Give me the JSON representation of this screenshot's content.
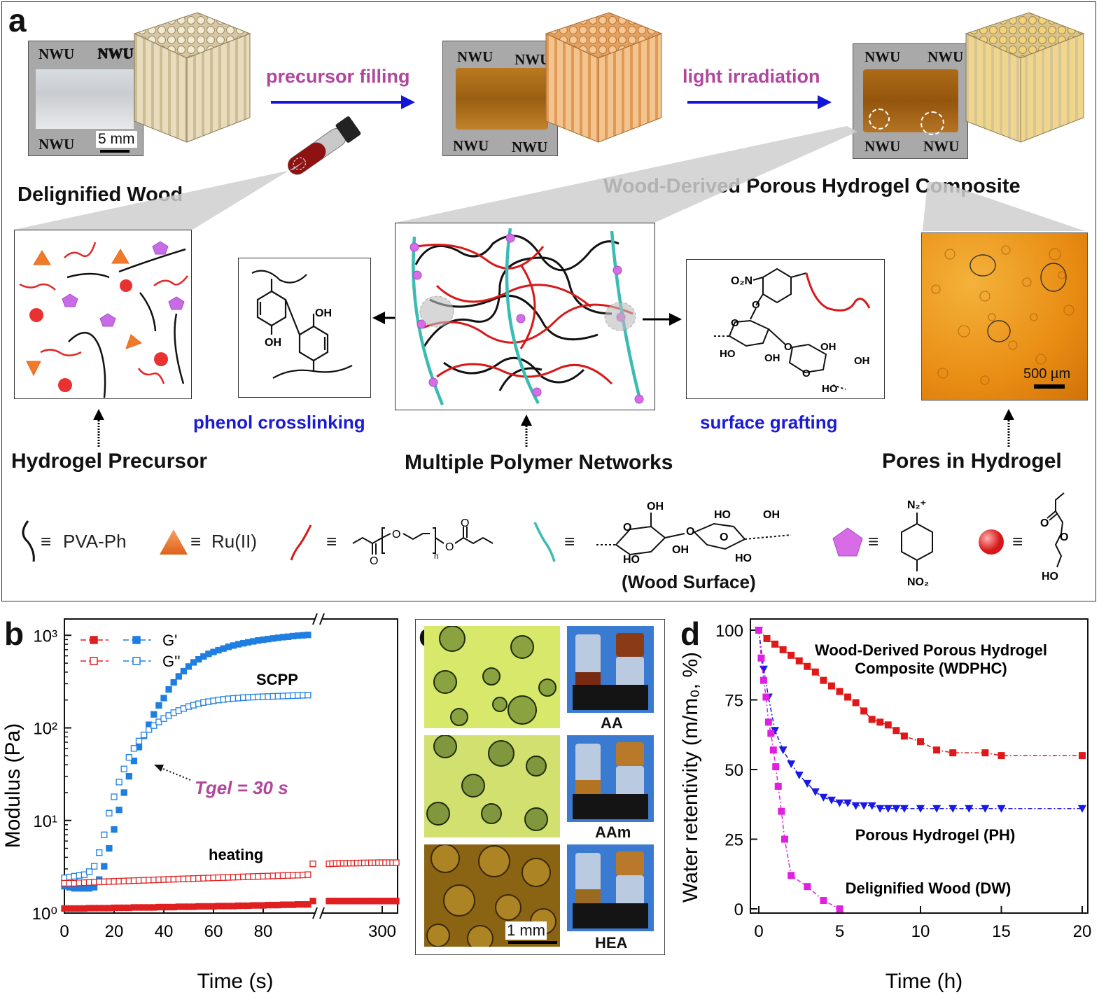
{
  "panel_a": {
    "letter": "a",
    "photo_labels": [
      "NWU",
      "NWU",
      "NWU",
      "NWU"
    ],
    "photo2_labels": [
      "NWU",
      "NWU",
      "NWU",
      "NWU"
    ],
    "photo3_labels": [
      "NWU",
      "NWU",
      "NWU",
      "NWU"
    ],
    "scale_bar": "5 mm",
    "arrow1": "precursor filling",
    "arrow2": "light irradiation",
    "title_left": "Delignified Wood",
    "title_right": "Wood-Derived Porous Hydrogel Composite",
    "phenol_label": "phenol crosslinking",
    "grafting_label": "surface grafting",
    "caption_precursor": "Hydrogel Precursor",
    "caption_networks": "Multiple Polymer Networks",
    "caption_pores": "Pores in Hydrogel",
    "pores_scale": "500 µm",
    "phenol_oh1": "OH",
    "phenol_oh2": "OH",
    "graft_no2": "O₂N",
    "graft_labels": [
      "O",
      "O",
      "HO",
      "OH",
      "OH",
      "OH",
      "O",
      "HO",
      "O"
    ],
    "legend": {
      "pva": "PVA-Ph",
      "ru": "Ru(II)",
      "eq": "≡",
      "peg_n": "n",
      "wood_surface": "(Wood Surface)",
      "wood_labels": [
        "OH",
        "HO",
        "OH",
        "O",
        "O",
        "O",
        "OH",
        "HO",
        "HO"
      ],
      "diazo_top": "N₂⁺",
      "diazo_bottom": "NO₂",
      "hea_labels": [
        "O",
        "O",
        "HO"
      ],
      "peg_o": [
        "O",
        "O",
        "O",
        "O"
      ]
    }
  },
  "panel_b": {
    "letter": "b",
    "chart_data": {
      "type": "scatter",
      "xlabel": "Time (s)",
      "ylabel": "Modulus (Pa)",
      "yscale": "log",
      "ylim": [
        1,
        1500
      ],
      "x_ticks": [
        "0",
        "20",
        "40",
        "60",
        "80",
        "300"
      ],
      "y_ticks": [
        "10⁰",
        "10¹",
        "10²",
        "10³"
      ],
      "legend": [
        "G'",
        "G''"
      ],
      "annotations": [
        "SCPP",
        "heating",
        "Tgel = 30 s"
      ],
      "series": [
        {
          "name": "SCPP G'",
          "color": "#1e7fe0",
          "filled": true,
          "x": [
            0,
            2,
            4,
            6,
            8,
            10,
            12,
            14,
            16,
            18,
            20,
            22,
            24,
            26,
            28,
            30,
            32,
            34,
            36,
            38,
            40,
            42,
            44,
            46,
            48,
            50,
            52,
            54,
            56,
            58,
            60,
            62,
            64,
            66,
            68,
            70,
            72,
            74,
            76,
            78,
            80,
            82,
            84,
            86,
            88,
            90,
            92,
            94,
            96,
            98
          ],
          "y": [
            1.95,
            1.9,
            1.85,
            1.85,
            1.85,
            1.85,
            1.9,
            2.3,
            3.2,
            5,
            8,
            13,
            20,
            30,
            44,
            62,
            82,
            108,
            140,
            175,
            210,
            260,
            310,
            360,
            410,
            460,
            510,
            550,
            590,
            630,
            660,
            690,
            720,
            750,
            775,
            800,
            820,
            840,
            860,
            880,
            895,
            910,
            925,
            940,
            955,
            965,
            980,
            990,
            1000,
            1010
          ]
        },
        {
          "name": "SCPP G''",
          "color": "#1e7fe0",
          "filled": false,
          "x": [
            0,
            2,
            4,
            6,
            8,
            10,
            12,
            14,
            16,
            18,
            20,
            22,
            24,
            26,
            28,
            30,
            32,
            34,
            36,
            38,
            40,
            42,
            44,
            46,
            48,
            50,
            52,
            54,
            56,
            58,
            60,
            62,
            64,
            66,
            68,
            70,
            72,
            74,
            76,
            78,
            80,
            82,
            84,
            86,
            88,
            90,
            92,
            94,
            96,
            98
          ],
          "y": [
            2.4,
            2.45,
            2.5,
            2.55,
            2.6,
            2.8,
            3.2,
            4.5,
            7,
            12,
            18,
            26,
            36,
            48,
            60,
            72,
            84,
            96,
            106,
            116,
            126,
            136,
            146,
            154,
            162,
            170,
            176,
            182,
            188,
            192,
            196,
            200,
            203,
            206,
            208,
            210,
            212,
            214,
            215,
            216,
            217,
            218,
            219,
            220,
            221,
            222,
            223,
            224,
            225,
            226
          ]
        },
        {
          "name": "heating G'",
          "color": "#e02020",
          "filled": true,
          "x": [
            0,
            2,
            4,
            6,
            8,
            10,
            12,
            14,
            16,
            18,
            20,
            22,
            24,
            26,
            28,
            30,
            32,
            34,
            36,
            38,
            40,
            42,
            44,
            46,
            48,
            50,
            52,
            54,
            56,
            58,
            60,
            62,
            64,
            66,
            68,
            70,
            72,
            74,
            76,
            78,
            80,
            82,
            84,
            86,
            88,
            90,
            92,
            94,
            96,
            98,
            100,
            102,
            104,
            106,
            108,
            110,
            112,
            114,
            116,
            118,
            120,
            122,
            124,
            126,
            128,
            130,
            132,
            134,
            136,
            138,
            140
          ],
          "y": [
            1.12,
            1.12,
            1.12,
            1.12,
            1.12,
            1.13,
            1.13,
            1.13,
            1.13,
            1.13,
            1.14,
            1.14,
            1.14,
            1.14,
            1.15,
            1.15,
            1.15,
            1.15,
            1.15,
            1.16,
            1.16,
            1.16,
            1.16,
            1.17,
            1.17,
            1.17,
            1.17,
            1.18,
            1.18,
            1.18,
            1.18,
            1.19,
            1.19,
            1.19,
            1.19,
            1.2,
            1.2,
            1.2,
            1.21,
            1.21,
            1.21,
            1.22,
            1.22,
            1.22,
            1.23,
            1.23,
            1.23,
            1.24,
            1.24,
            1.24,
            1.35,
            1.35,
            1.35,
            1.35,
            1.35,
            1.35,
            1.35,
            1.35,
            1.35,
            1.35,
            1.35,
            1.35,
            1.35,
            1.35,
            1.35,
            1.35,
            1.35,
            1.35,
            1.35,
            1.35,
            1.35
          ]
        },
        {
          "name": "heating G''",
          "color": "#e02020",
          "filled": false,
          "x": [
            0,
            2,
            4,
            6,
            8,
            10,
            12,
            14,
            16,
            18,
            20,
            22,
            24,
            26,
            28,
            30,
            32,
            34,
            36,
            38,
            40,
            42,
            44,
            46,
            48,
            50,
            52,
            54,
            56,
            58,
            60,
            62,
            64,
            66,
            68,
            70,
            72,
            74,
            76,
            78,
            80,
            82,
            84,
            86,
            88,
            90,
            92,
            94,
            96,
            98,
            100,
            102,
            104,
            106,
            108,
            110,
            112,
            114,
            116,
            118,
            120,
            122,
            124,
            126,
            128,
            130,
            132,
            134,
            136,
            138,
            140
          ],
          "y": [
            2.1,
            2.1,
            2.1,
            2.12,
            2.13,
            2.14,
            2.16,
            2.17,
            2.18,
            2.19,
            2.2,
            2.21,
            2.22,
            2.23,
            2.24,
            2.25,
            2.26,
            2.27,
            2.28,
            2.29,
            2.3,
            2.31,
            2.32,
            2.33,
            2.34,
            2.35,
            2.36,
            2.37,
            2.38,
            2.39,
            2.4,
            2.41,
            2.42,
            2.43,
            2.44,
            2.45,
            2.46,
            2.47,
            2.48,
            2.49,
            2.5,
            2.51,
            2.52,
            2.53,
            2.54,
            2.55,
            2.56,
            2.57,
            2.58,
            2.6,
            3.4,
            3.4,
            3.42,
            3.43,
            3.44,
            3.45,
            3.45,
            3.46,
            3.46,
            3.47,
            3.47,
            3.48,
            3.48,
            3.49,
            3.49,
            3.5,
            3.5,
            3.5,
            3.5,
            3.5,
            3.5
          ]
        }
      ]
    }
  },
  "panel_c": {
    "letter": "c",
    "labels": [
      "AA",
      "AAm",
      "HEA"
    ],
    "scale_bar": "1 mm"
  },
  "panel_d": {
    "letter": "d",
    "chart_data": {
      "type": "line",
      "xlabel": "Time (h)",
      "ylabel": "Water retentivity (m/m₀, %)",
      "xlim": [
        0,
        20
      ],
      "ylim": [
        0,
        100
      ],
      "x_ticks": [
        "0",
        "5",
        "10",
        "15",
        "20"
      ],
      "y_ticks": [
        "0",
        "25",
        "50",
        "75",
        "100"
      ],
      "series": [
        {
          "name": "Wood-Derived Porous Hydrogel Composite (WDPHC)",
          "color": "#e01818",
          "marker": "square",
          "x": [
            0,
            0.5,
            1,
            1.5,
            2,
            2.5,
            3,
            3.5,
            4,
            4.5,
            5,
            5.5,
            6,
            6.5,
            7,
            7.5,
            8,
            8.5,
            9,
            10,
            11,
            12,
            14,
            15,
            20
          ],
          "y": [
            100,
            97,
            95,
            93,
            91,
            89,
            87,
            85,
            82,
            80,
            78,
            76,
            74,
            71,
            68,
            67,
            66,
            64,
            62,
            60,
            57,
            56,
            56,
            55,
            55
          ]
        },
        {
          "name": "Porous Hydrogel (PH)",
          "color": "#1818e8",
          "marker": "triangle-down",
          "x": [
            0,
            0.3,
            0.6,
            1,
            1.5,
            2,
            2.5,
            3,
            3.5,
            4,
            4.5,
            5,
            5.5,
            6,
            6.5,
            7,
            7.5,
            8,
            8.5,
            9,
            10,
            11,
            12,
            13,
            14,
            15,
            20
          ],
          "y": [
            100,
            86,
            76,
            64,
            57,
            52,
            48,
            45,
            42,
            40,
            39,
            38,
            38,
            37,
            37,
            37,
            36,
            36,
            36,
            36,
            36,
            36,
            36,
            36,
            36,
            36,
            36
          ]
        },
        {
          "name": "Delignified Wood (DW)",
          "color": "#e020e0",
          "marker": "square",
          "x": [
            0,
            0.15,
            0.3,
            0.45,
            0.6,
            0.75,
            0.9,
            1.05,
            1.2,
            1.4,
            1.6,
            2,
            3,
            4,
            5
          ],
          "y": [
            100,
            90,
            82,
            76,
            67,
            63,
            57,
            51,
            44,
            35,
            25,
            12,
            8,
            3,
            0
          ]
        }
      ],
      "labels": [
        "Wood-Derived Porous Hydrogel",
        "Composite (WDPHC)",
        "Porous Hydrogel (PH)",
        "Delignified  Wood (DW)"
      ]
    }
  }
}
